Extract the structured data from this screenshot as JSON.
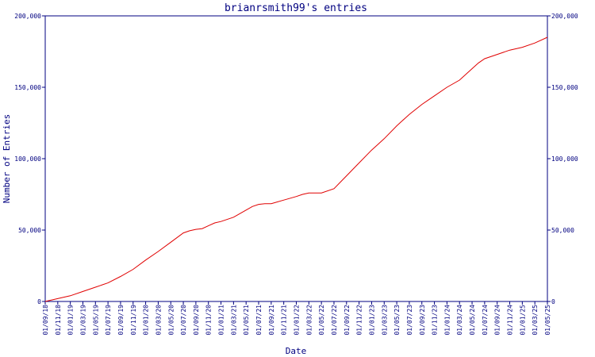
{
  "chart_data": {
    "type": "line",
    "title": "brianrsmith99's entries",
    "xlabel": "Date",
    "ylabel": "Number of Entries",
    "x_tick_labels": [
      "01/09/18",
      "01/11/18",
      "01/01/19",
      "01/03/19",
      "01/05/19",
      "01/07/19",
      "01/09/19",
      "01/11/19",
      "01/01/20",
      "01/03/20",
      "01/05/20",
      "01/07/20",
      "01/09/20",
      "01/11/20",
      "01/01/21",
      "01/03/21",
      "01/05/21",
      "01/07/21",
      "01/09/21",
      "01/11/21",
      "01/01/22",
      "01/03/22",
      "01/05/22",
      "01/07/22",
      "01/09/22",
      "01/11/22",
      "01/01/23",
      "01/03/23",
      "01/05/23",
      "01/07/23",
      "01/09/23",
      "01/11/23",
      "01/01/24",
      "01/03/24",
      "01/05/24",
      "01/07/24",
      "01/09/24",
      "01/11/24",
      "01/01/25",
      "01/03/25",
      "01/05/25"
    ],
    "y_tick_labels": [
      "0",
      "50,000",
      "100,000",
      "150,000",
      "200,000"
    ],
    "ylim": [
      0,
      200000
    ],
    "xlim": [
      "01/09/18",
      "01/05/25"
    ],
    "grid": false,
    "series": [
      {
        "color": "#e00000",
        "x": [
          "01/09/18",
          "01/11/18",
          "01/01/19",
          "01/03/19",
          "01/05/19",
          "01/07/19",
          "01/09/19",
          "01/11/19",
          "01/01/20",
          "01/03/20",
          "01/05/20",
          "01/07/20",
          "01/08/20",
          "01/09/20",
          "01/10/20",
          "01/11/20",
          "01/12/20",
          "01/01/21",
          "01/03/21",
          "01/05/21",
          "01/06/21",
          "01/07/21",
          "01/08/21",
          "01/09/21",
          "01/11/21",
          "01/01/22",
          "01/02/22",
          "01/03/22",
          "01/04/22",
          "01/05/22",
          "01/07/22",
          "01/09/22",
          "01/11/22",
          "01/01/23",
          "01/02/23",
          "01/03/23",
          "01/05/23",
          "01/07/23",
          "01/09/23",
          "01/11/23",
          "01/01/24",
          "01/03/24",
          "01/05/24",
          "01/06/24",
          "01/07/24",
          "01/09/24",
          "01/11/24",
          "01/01/25",
          "01/03/25",
          "01/05/25"
        ],
        "y": [
          0,
          2000,
          4000,
          7000,
          10000,
          13000,
          17500,
          22500,
          29000,
          35000,
          41500,
          48000,
          49500,
          50500,
          51000,
          53000,
          55000,
          56000,
          59000,
          64000,
          66500,
          68000,
          68500,
          68500,
          71000,
          73500,
          75000,
          76000,
          76000,
          76000,
          79000,
          88000,
          97000,
          106000,
          110000,
          114000,
          123000,
          131000,
          138000,
          144000,
          150000,
          155000,
          163000,
          167000,
          170000,
          173000,
          176000,
          178000,
          181000,
          185000
        ]
      }
    ]
  },
  "colors": {
    "axis": "#000080",
    "line": "#e00000",
    "background": "#ffffff"
  }
}
